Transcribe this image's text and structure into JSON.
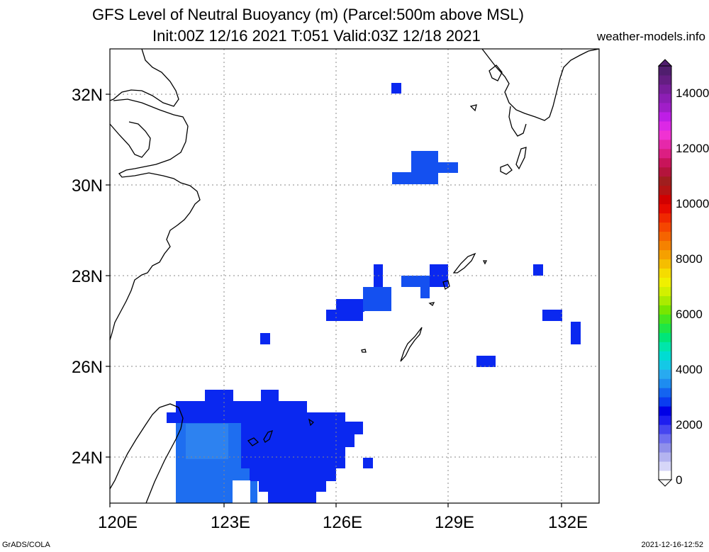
{
  "title_line1": "GFS Level of Neutral Buoyancy (m) (Parcel:500m above MSL)",
  "title_line2": "Init:00Z 12/16 2021 T:051 Valid:03Z 12/18 2021",
  "site": "weather-models.info",
  "footer_left": "GrADS/COLA",
  "footer_right": "2021-12-16-12:52",
  "map": {
    "lon_labels": [
      "120E",
      "123E",
      "126E",
      "129E",
      "132E"
    ],
    "lat_labels": [
      "32N",
      "30N",
      "28N",
      "26N",
      "24N"
    ],
    "lon_range": [
      120,
      133
    ],
    "lat_range": [
      23,
      33
    ],
    "grid_lines": true
  },
  "colorbar": {
    "labels": [
      "0",
      "2000",
      "4000",
      "6000",
      "8000",
      "10000",
      "12000",
      "14000"
    ],
    "max": 15000,
    "colors": [
      "#ffffff",
      "#d6d6f8",
      "#b4b4f0",
      "#9090ea",
      "#6e6ef0",
      "#4646f0",
      "#1e1ef0",
      "#0000e6",
      "#0a3cf0",
      "#1464f0",
      "#1e8cf0",
      "#28aaf0",
      "#14c8e6",
      "#00dcd2",
      "#00e6aa",
      "#00e678",
      "#1ee646",
      "#46e61e",
      "#78e600",
      "#aaeb00",
      "#d2f000",
      "#f0f000",
      "#f5dc00",
      "#f5be00",
      "#f5a000",
      "#f58200",
      "#f56400",
      "#f54600",
      "#f02800",
      "#e60a00",
      "#d20000",
      "#b41414",
      "#a01e1e",
      "#b4143c",
      "#c8145a",
      "#dc1e82",
      "#e628aa",
      "#f032d2",
      "#dc28e6",
      "#be1ee6",
      "#a01ec8",
      "#8c1eb4",
      "#781e9b",
      "#641e82",
      "#501e6e"
    ]
  }
}
